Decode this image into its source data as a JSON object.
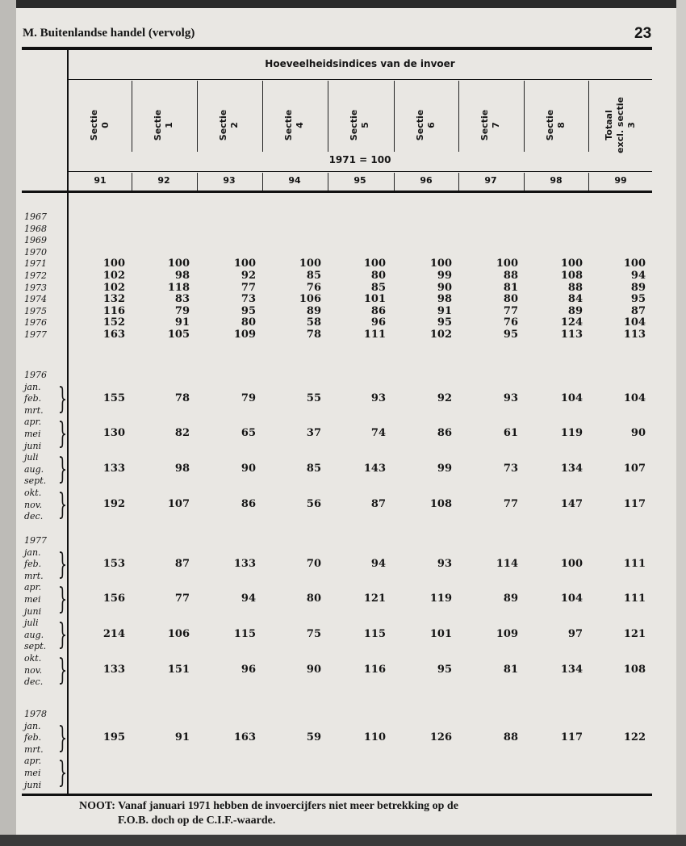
{
  "header": {
    "title": "M. Buitenlandse handel (vervolg)",
    "page_number": "23"
  },
  "table": {
    "title": "Hoeveelheidsindices van de invoer",
    "base": "1971 = 100",
    "columns": [
      {
        "label": "Sectie\n0",
        "number": "91"
      },
      {
        "label": "Sectie\n1",
        "number": "92"
      },
      {
        "label": "Sectie\n2",
        "number": "93"
      },
      {
        "label": "Sectie\n4",
        "number": "94"
      },
      {
        "label": "Sectie\n5",
        "number": "95"
      },
      {
        "label": "Sectie\n6",
        "number": "96"
      },
      {
        "label": "Sectie\n7",
        "number": "97"
      },
      {
        "label": "Sectie\n8",
        "number": "98"
      },
      {
        "label": "Totaal\nexcl. sectie\n3",
        "number": "99"
      }
    ],
    "annual": [
      {
        "label": "1967",
        "values": []
      },
      {
        "label": "1968",
        "values": []
      },
      {
        "label": "1969",
        "values": []
      },
      {
        "label": "1970",
        "values": []
      },
      {
        "label": "1971",
        "values": [
          "100",
          "100",
          "100",
          "100",
          "100",
          "100",
          "100",
          "100",
          "100"
        ]
      },
      {
        "label": "1972",
        "values": [
          "102",
          "98",
          "92",
          "85",
          "80",
          "99",
          "88",
          "108",
          "94"
        ]
      },
      {
        "label": "1973",
        "values": [
          "102",
          "118",
          "77",
          "76",
          "85",
          "90",
          "81",
          "88",
          "89"
        ]
      },
      {
        "label": "1974",
        "values": [
          "132",
          "83",
          "73",
          "106",
          "101",
          "98",
          "80",
          "84",
          "95"
        ]
      },
      {
        "label": "1975",
        "values": [
          "116",
          "79",
          "95",
          "89",
          "86",
          "91",
          "77",
          "89",
          "87"
        ]
      },
      {
        "label": "1976",
        "values": [
          "152",
          "91",
          "80",
          "58",
          "96",
          "95",
          "76",
          "124",
          "104"
        ]
      },
      {
        "label": "1977",
        "values": [
          "163",
          "105",
          "109",
          "78",
          "111",
          "102",
          "95",
          "113",
          "113"
        ]
      }
    ],
    "quarterly": [
      {
        "year": "1976",
        "months": [
          "jan.",
          "feb.",
          "mrt.",
          "apr.",
          "mei",
          "juni",
          "juli",
          "aug.",
          "sept.",
          "okt.",
          "nov.",
          "dec."
        ],
        "quarters": [
          [
            "155",
            "78",
            "79",
            "55",
            "93",
            "92",
            "93",
            "104",
            "104"
          ],
          [
            "130",
            "82",
            "65",
            "37",
            "74",
            "86",
            "61",
            "119",
            "90"
          ],
          [
            "133",
            "98",
            "90",
            "85",
            "143",
            "99",
            "73",
            "134",
            "107"
          ],
          [
            "192",
            "107",
            "86",
            "56",
            "87",
            "108",
            "77",
            "147",
            "117"
          ]
        ]
      },
      {
        "year": "1977",
        "months": [
          "jan.",
          "feb.",
          "mrt.",
          "apr.",
          "mei",
          "juni",
          "juli",
          "aug.",
          "sept.",
          "okt.",
          "nov.",
          "dec."
        ],
        "quarters": [
          [
            "153",
            "87",
            "133",
            "70",
            "94",
            "93",
            "114",
            "100",
            "111"
          ],
          [
            "156",
            "77",
            "94",
            "80",
            "121",
            "119",
            "89",
            "104",
            "111"
          ],
          [
            "214",
            "106",
            "115",
            "75",
            "115",
            "101",
            "109",
            "97",
            "121"
          ],
          [
            "133",
            "151",
            "96",
            "90",
            "116",
            "95",
            "81",
            "134",
            "108"
          ]
        ]
      },
      {
        "year": "1978",
        "months": [
          "jan.",
          "feb.",
          "mrt.",
          "apr.",
          "mei",
          "juni"
        ],
        "quarters": [
          [
            "195",
            "91",
            "163",
            "59",
            "110",
            "126",
            "88",
            "117",
            "122"
          ]
        ]
      }
    ]
  },
  "note": {
    "line1": "NOOT:  Vanaf januari 1971 hebben de invoercijfers niet meer betrekking op de",
    "line2": "F.O.B. doch op de C.I.F.-waarde."
  }
}
